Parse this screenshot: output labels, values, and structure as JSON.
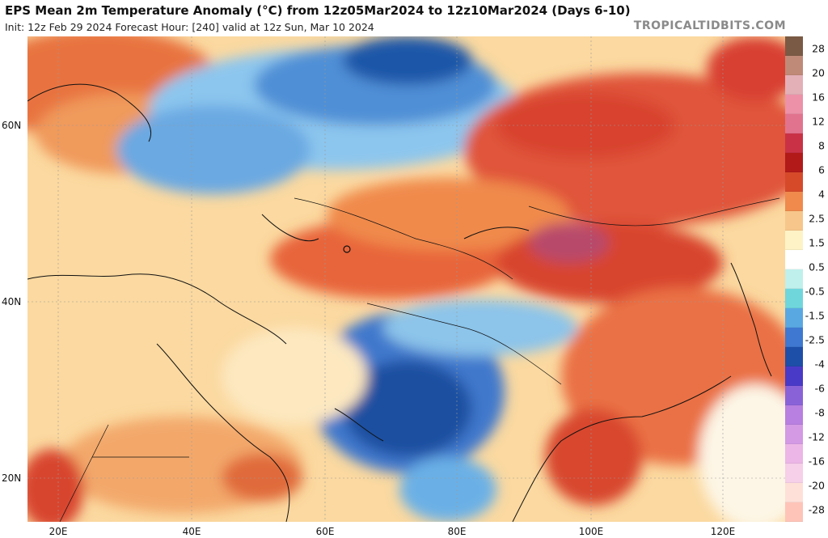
{
  "header": {
    "title": "EPS Mean 2m Temperature Anomaly (°C) from 12z05Mar2024 to 12z10Mar2024 (Days 6-10)",
    "subtitle": "Init: 12z Feb 29 2024   Forecast Hour: [240]   valid at 12z Sun, Mar 10 2024",
    "brand": "TROPICALTIDBITS.COM"
  },
  "axes": {
    "lat_labels": [
      "60N",
      "40N",
      "20N"
    ],
    "lon_labels": [
      "20E",
      "40E",
      "60E",
      "80E",
      "100E",
      "120E"
    ]
  },
  "colorbar": {
    "labels": [
      "28",
      "20",
      "16",
      "12",
      "8",
      "6",
      "4",
      "2.5",
      "1.5",
      "0.5",
      "-0.5",
      "-1.5",
      "-2.5",
      "-4",
      "-6",
      "-8",
      "-12",
      "-16",
      "-20",
      "-28"
    ],
    "colors": [
      "#7a5a45",
      "#c08a78",
      "#e3b0b8",
      "#ec91a8",
      "#e2738e",
      "#c93246",
      "#b21a1a",
      "#d64a2a",
      "#ef8a4c",
      "#f7c68a",
      "#fdf3c6",
      "#ffffff",
      "#bff0ec",
      "#6fd6dc",
      "#5aa8e2",
      "#3e78d0",
      "#1e4fa8",
      "#4a3ac8",
      "#8a62d8",
      "#b880e0",
      "#d49ae4",
      "#ecb6e6",
      "#f6cfe8",
      "#ffe0d8",
      "#ffc4b8"
    ]
  },
  "colors": {
    "warm_strong": "#d84a2b",
    "warm": "#f29a59",
    "warm_light": "#fde2a6",
    "cool_light": "#9dd0ef",
    "cool": "#4f8fd6",
    "cool_strong": "#1e4f9e"
  }
}
